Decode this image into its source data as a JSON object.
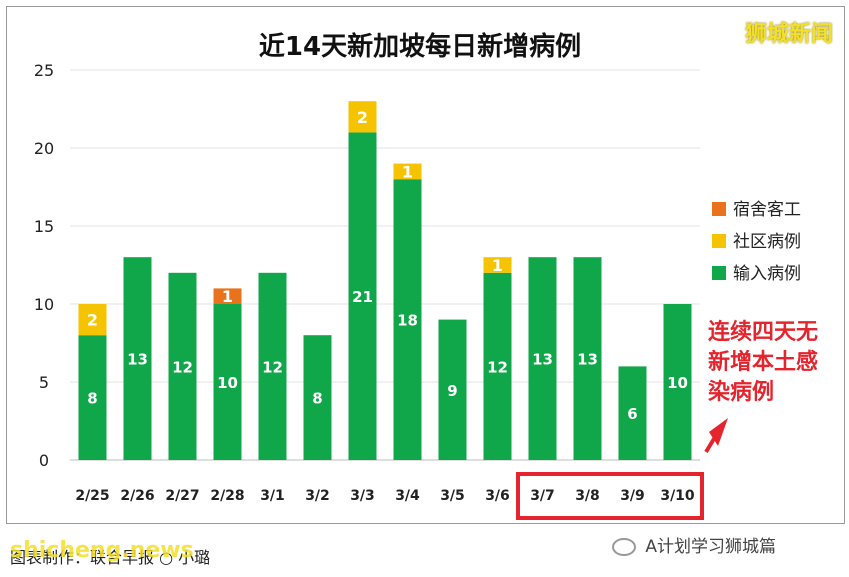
{
  "chart_data": {
    "type": "bar",
    "stacked": true,
    "title": "近14天新加坡每日新增病例",
    "categories": [
      "2/25",
      "2/26",
      "2/27",
      "2/28",
      "3/1",
      "3/2",
      "3/3",
      "3/4",
      "3/5",
      "3/6",
      "3/7",
      "3/8",
      "3/9",
      "3/10"
    ],
    "series": [
      {
        "name": "输入病例",
        "color": "#10a64a",
        "values": [
          8,
          13,
          12,
          10,
          12,
          8,
          21,
          18,
          9,
          12,
          13,
          13,
          6,
          10
        ]
      },
      {
        "name": "社区病例",
        "color": "#f6c300",
        "values": [
          2,
          0,
          0,
          0,
          0,
          0,
          2,
          1,
          0,
          1,
          0,
          0,
          0,
          0
        ]
      },
      {
        "name": "宿舍客工",
        "color": "#e8731c",
        "values": [
          0,
          0,
          0,
          1,
          0,
          0,
          0,
          0,
          0,
          0,
          0,
          0,
          0,
          0
        ]
      }
    ],
    "yticks": [
      0,
      5,
      10,
      15,
      20,
      25
    ],
    "ylim": [
      0,
      25
    ],
    "legend_position": "right",
    "grid": true,
    "highlight_categories": [
      "3/7",
      "3/8",
      "3/9",
      "3/10"
    ],
    "highlight_color": "#e5252e"
  },
  "legend_order": [
    2,
    1,
    0
  ],
  "corner_tag": "狮城新闻",
  "annotation": "连续四天无新增本土感染病例",
  "credit": "图表制作：联合早报 ○ 小璐",
  "credit_overlay": "shicheng.news",
  "wechat": "A计划学习狮城篇"
}
